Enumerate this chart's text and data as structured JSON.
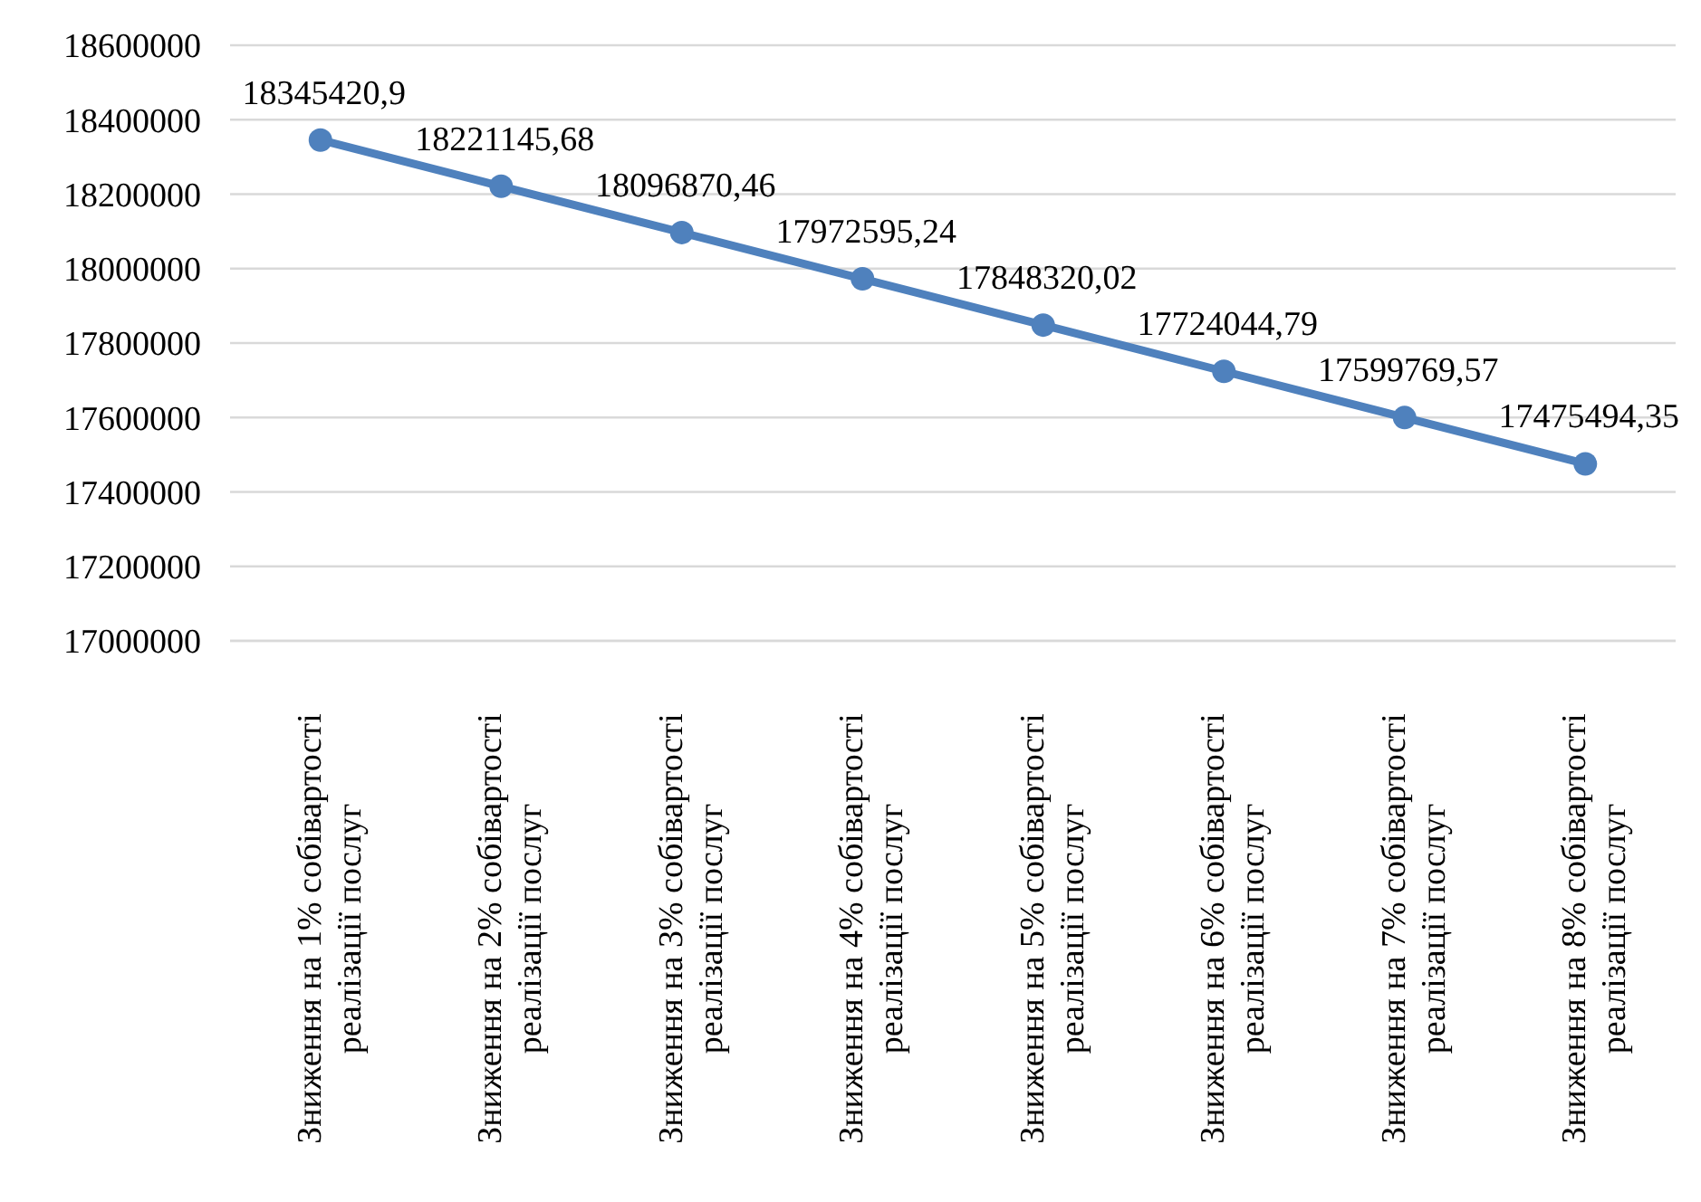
{
  "chart_data": {
    "type": "line",
    "categories": [
      "Зниження на 1% собівартості реалізації послуг",
      "Зниження на 2% собівартості реалізації послуг",
      "Зниження на 3% собівартості реалізації послуг",
      "Зниження на 4% собівартості реалізації послуг",
      "Зниження на 5% собівартості реалізації послуг",
      "Зниження на 6% собівартості реалізації послуг",
      "Зниження на 7% собівартості реалізації послуг",
      "Зниження на 8% собівартості реалізації послуг"
    ],
    "series": [
      {
        "color": "#4f81bd",
        "values": [
          18345420.9,
          18221145.68,
          18096870.46,
          17972595.24,
          17848320.02,
          17724044.79,
          17599769.57,
          17475494.35
        ],
        "value_labels": [
          "18345420,9",
          "18221145,68",
          "18096870,46",
          "17972595,24",
          "17848320,02",
          "17724044,79",
          "17599769,57",
          "17475494,35"
        ]
      }
    ],
    "ylim": [
      17000000,
      18600000
    ],
    "yticks": [
      17000000,
      17200000,
      17400000,
      17600000,
      17800000,
      18000000,
      18200000,
      18400000,
      18600000
    ],
    "grid": "y",
    "marker": "circle",
    "line_style": "solid"
  }
}
